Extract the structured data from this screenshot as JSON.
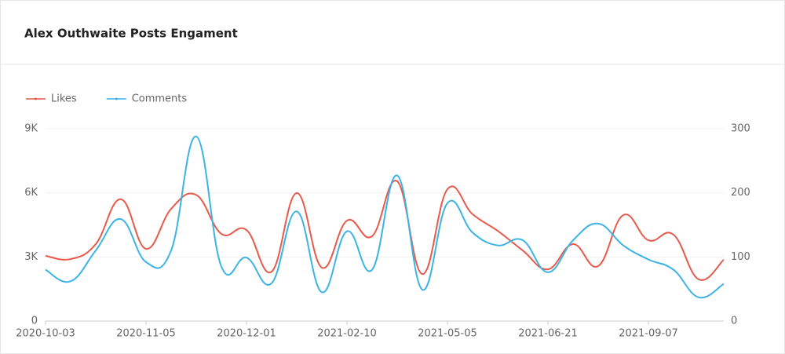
{
  "chart_data": {
    "type": "line",
    "title": "Alex Outhwaite Posts Engament",
    "categories": [
      "2020-10-03",
      null,
      null,
      null,
      "2020-11-05",
      null,
      null,
      null,
      "2020-12-01",
      null,
      null,
      null,
      "2021-02-10",
      null,
      null,
      null,
      "2021-05-05",
      null,
      null,
      null,
      "2021-06-21",
      null,
      null,
      null,
      "2021-09-07",
      null,
      null,
      null
    ],
    "series": [
      {
        "name": "Likes",
        "color": "#e8594a",
        "values": [
          3050,
          2900,
          3600,
          5700,
          3380,
          5250,
          5900,
          4080,
          4260,
          2310,
          5990,
          2500,
          4700,
          3970,
          6540,
          2200,
          6170,
          5000,
          4220,
          3300,
          2420,
          3600,
          2570,
          4960,
          3780,
          4040,
          1950,
          2870
        ]
      },
      {
        "name": "Comments",
        "color": "#3bb4e5",
        "axis": "y2",
        "values": [
          80,
          62,
          110,
          159,
          92,
          110,
          288,
          85,
          99,
          59,
          171,
          45,
          140,
          80,
          227,
          49,
          184,
          138,
          118,
          126,
          76,
          126,
          152,
          118,
          96,
          80,
          37,
          58
        ]
      }
    ],
    "ylim": [
      0,
      9000
    ],
    "yticks": [
      0,
      {
        "value": 3000,
        "label": "3K"
      },
      {
        "value": 6000,
        "label": "6K"
      },
      {
        "value": 9000,
        "label": "9K"
      }
    ],
    "y2lim": [
      0,
      300
    ],
    "y2ticks": [
      0,
      100,
      200,
      300
    ],
    "grid": true,
    "legend": "top-left"
  }
}
